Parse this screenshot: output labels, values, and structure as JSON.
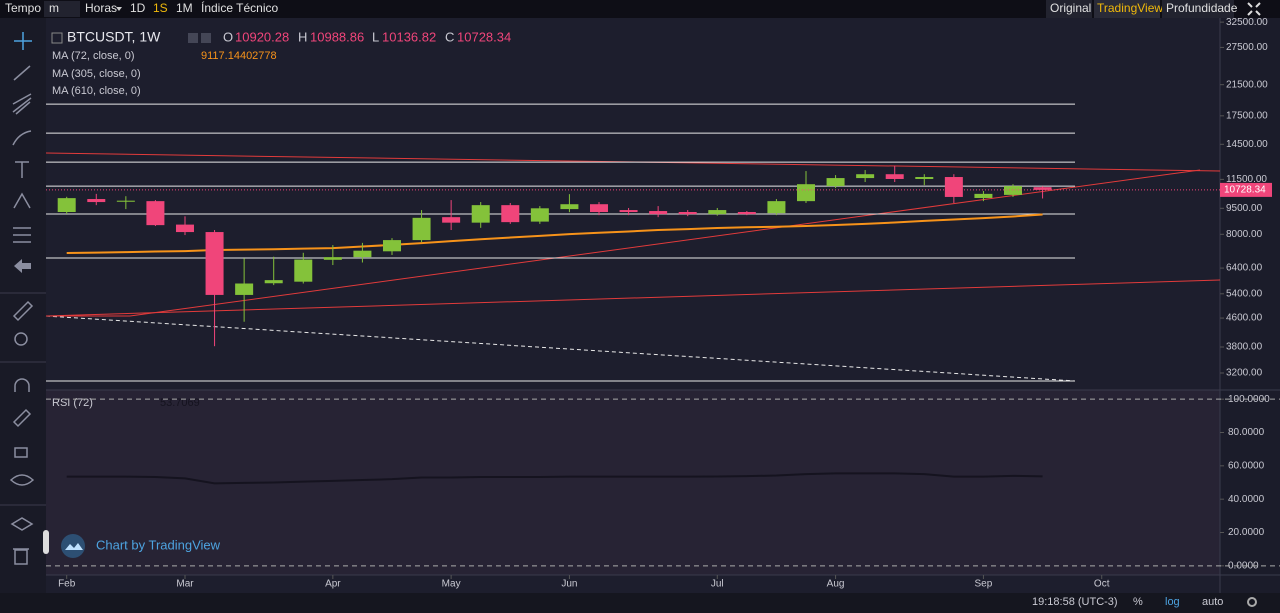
{
  "toolbar": {
    "tempo": "Tempo",
    "interval": "m",
    "hours": "Horas",
    "d1": "1D",
    "w1": "1S",
    "m1": "1M",
    "indicators": "Índice Técnico",
    "views": [
      "Original",
      "TradingView",
      "Profundidade"
    ]
  },
  "chart_data": [
    {
      "type": "candlestick",
      "symbol": "BTCUSDT, 1W",
      "ohlc_labels": [
        "O",
        "H",
        "L",
        "C"
      ],
      "x": [
        0,
        1,
        2,
        3,
        4,
        5,
        6,
        7,
        8,
        9,
        10,
        11,
        12,
        13,
        14,
        15,
        16,
        17,
        18,
        19,
        20,
        21,
        22,
        23,
        24,
        25,
        26,
        27,
        28,
        29,
        30,
        31,
        32,
        33
      ],
      "open": [
        9270,
        10100,
        9920,
        9960,
        8530,
        8120,
        5360,
        5790,
        5850,
        6760,
        6880,
        7150,
        7700,
        8960,
        8640,
        9700,
        8700,
        9450,
        9760,
        9390,
        9330,
        9270,
        9140,
        9270,
        9200,
        9960,
        11000,
        11600,
        11900,
        11530,
        11680,
        10170,
        10380,
        10920.28
      ],
      "high": [
        10250,
        10450,
        10290,
        10030,
        9010,
        8230,
        6830,
        6900,
        7080,
        7450,
        7560,
        7800,
        9390,
        10030,
        9900,
        9840,
        9640,
        10430,
        9900,
        9520,
        9640,
        9390,
        9520,
        9330,
        10100,
        12150,
        11830,
        12230,
        12580,
        11900,
        11900,
        10650,
        11140,
        10988.86
      ],
      "low": [
        9150,
        9700,
        9450,
        8450,
        7960,
        3820,
        4490,
        5720,
        5780,
        6530,
        6640,
        6980,
        7600,
        8230,
        8350,
        8570,
        8570,
        9260,
        9080,
        9080,
        8960,
        9020,
        9050,
        9080,
        9080,
        9840,
        10860,
        11300,
        11300,
        11070,
        9840,
        9960,
        10240,
        10136.82
      ],
      "close": [
        10160,
        9900,
        9990,
        8500,
        8120,
        5360,
        5780,
        5910,
        6770,
        6880,
        7180,
        7700,
        8920,
        8640,
        9700,
        8670,
        9500,
        9760,
        9270,
        9270,
        9140,
        9140,
        9390,
        9140,
        9960,
        11140,
        11600,
        11900,
        11530,
        11680,
        10240,
        10450,
        11000,
        10728.34
      ],
      "up_color": "#84c23a",
      "down_color": "#f0457a",
      "xlim": [
        -0.7,
        39
      ],
      "xticks": [
        {
          "value": 0,
          "label": "Feb"
        },
        {
          "value": 4,
          "label": "Mar"
        },
        {
          "value": 9,
          "label": "Apr"
        },
        {
          "value": 13,
          "label": "May"
        },
        {
          "value": 17,
          "label": "Jun"
        },
        {
          "value": 22,
          "label": "Jul"
        },
        {
          "value": 26,
          "label": "Aug"
        },
        {
          "value": 31,
          "label": "Sep"
        },
        {
          "value": 35,
          "label": "Oct"
        }
      ],
      "ylim": [
        2860,
        33400
      ],
      "log_scale": true,
      "yticks": [
        {
          "value": 32500,
          "label": "32500.00"
        },
        {
          "value": 27500,
          "label": "27500.00"
        },
        {
          "value": 21500,
          "label": "21500.00"
        },
        {
          "value": 17500,
          "label": "17500.00"
        },
        {
          "value": 14500,
          "label": "14500.00"
        },
        {
          "value": 11500,
          "label": "11500.00"
        },
        {
          "value": 9500,
          "label": "9500.00"
        },
        {
          "value": 8000,
          "label": "8000.00"
        },
        {
          "value": 6400,
          "label": "6400.00"
        },
        {
          "value": 5400,
          "label": "5400.00"
        },
        {
          "value": 4600,
          "label": "4600.00"
        },
        {
          "value": 3800,
          "label": "3800.00"
        },
        {
          "value": 3200,
          "label": "3200.00"
        }
      ],
      "levels": [
        18910,
        15610,
        12890,
        11000,
        9150,
        6840,
        3035
      ],
      "level_color": "#e8e8e8",
      "indicators": [
        {
          "name": "MA (72, close, 0)",
          "color": "#f7931a",
          "values": [
            7070,
            7090,
            7110,
            7140,
            7160,
            7210,
            7230,
            7250,
            7280,
            7300,
            7380,
            7460,
            7550,
            7650,
            7740,
            7830,
            7920,
            8010,
            8080,
            8150,
            8230,
            8280,
            8340,
            8380,
            8410,
            8450,
            8510,
            8570,
            8650,
            8740,
            8820,
            8900,
            9000,
            9117.14402778
          ]
        },
        {
          "name": "MA (305, close, 0)"
        },
        {
          "name": "MA (610, close, 0)"
        }
      ]
    },
    {
      "type": "line",
      "x": [
        0,
        1,
        2,
        3,
        4,
        5,
        6,
        7,
        8,
        9,
        10,
        11,
        12,
        13,
        14,
        15,
        16,
        17,
        18,
        19,
        20,
        21,
        22,
        23,
        24,
        25,
        26,
        27,
        28,
        29,
        30,
        31,
        32,
        33
      ],
      "series": [
        {
          "name": "RSI (72)",
          "color": "#15131f",
          "values": [
            53.5,
            53.5,
            53.5,
            53.3,
            52.5,
            49.5,
            49.8,
            50,
            50.5,
            51,
            51.5,
            52,
            53,
            53,
            53.3,
            53.3,
            53.3,
            53.5,
            53.5,
            53.5,
            53.5,
            53.5,
            53.6,
            53.8,
            54.2,
            55,
            55.5,
            55.5,
            55.5,
            55,
            53.5,
            53.5,
            54,
            53.7069
          ]
        }
      ],
      "xlim": [
        -0.7,
        39
      ],
      "ylim": [
        -5.5,
        105.5
      ],
      "yticks": [
        {
          "value": 0,
          "label": "0.0000"
        },
        {
          "value": 20,
          "label": "20.0000"
        },
        {
          "value": 40,
          "label": "40.0000"
        },
        {
          "value": 60,
          "label": "60.0000"
        },
        {
          "value": 80,
          "label": "80.0000"
        },
        {
          "value": 100,
          "label": "100.0000"
        }
      ]
    }
  ],
  "watermark": "Chart by TradingView",
  "status": {
    "time": "19:18:58 (UTC-3)",
    "percent": "%",
    "log": "log",
    "auto": "auto"
  }
}
